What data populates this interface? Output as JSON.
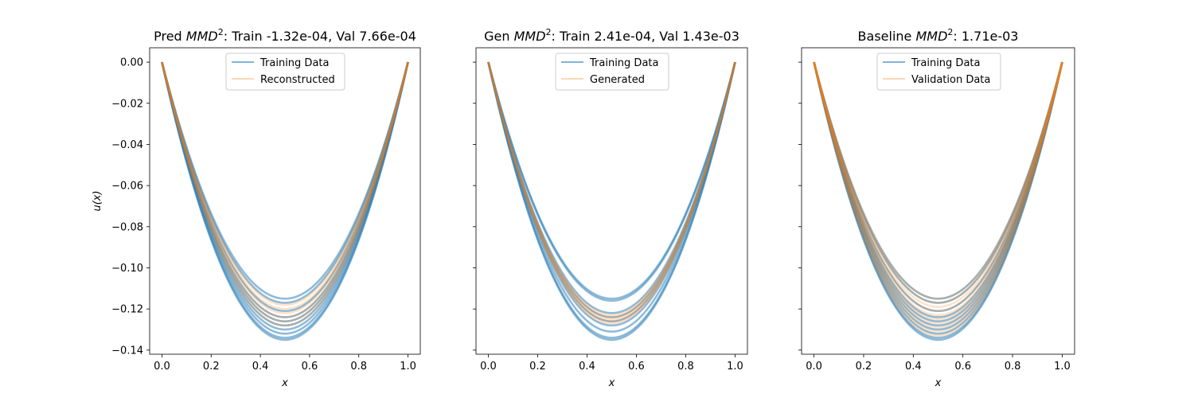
{
  "chart_data": [
    {
      "type": "line",
      "title_prefix": "Pred ",
      "title_italic": "MMD",
      "title_sup": "2",
      "title_suffix": ": Train -1.32e-04, Val 7.66e-04",
      "xlabel": "x",
      "ylabel": "u(x)",
      "xlim": [
        -0.05,
        1.05
      ],
      "ylim": [
        -0.142,
        0.007
      ],
      "xticks": [
        "0.0",
        "0.2",
        "0.4",
        "0.6",
        "0.8",
        "1.0"
      ],
      "yticks": [
        "0.00",
        "−0.02",
        "−0.04",
        "−0.06",
        "−0.08",
        "−0.10",
        "−0.12",
        "−0.14"
      ],
      "legend": {
        "position": "upper center",
        "entries": [
          "Training Data",
          "Reconstructed"
        ]
      },
      "series": [
        {
          "role": "training",
          "color": "#1f77b4",
          "minima": [
            -0.115,
            -0.117,
            -0.121,
            -0.124,
            -0.126,
            -0.128,
            -0.13,
            -0.132,
            -0.134,
            -0.135
          ]
        },
        {
          "role": "overlay",
          "color": "#ff7f0e",
          "minima": [
            -0.118,
            -0.12,
            -0.122,
            -0.124,
            -0.126,
            -0.128
          ]
        }
      ]
    },
    {
      "type": "line",
      "title_prefix": "Gen ",
      "title_italic": "MMD",
      "title_sup": "2",
      "title_suffix": ": Train 2.41e-04, Val 1.43e-03",
      "xlabel": "x",
      "ylabel": "",
      "xlim": [
        -0.05,
        1.05
      ],
      "ylim": [
        -0.142,
        0.007
      ],
      "xticks": [
        "0.0",
        "0.2",
        "0.4",
        "0.6",
        "0.8",
        "1.0"
      ],
      "yticks": [],
      "legend": {
        "position": "upper center",
        "entries": [
          "Training Data",
          "Generated"
        ]
      },
      "series": [
        {
          "role": "training",
          "color": "#1f77b4",
          "minima": [
            -0.115,
            -0.116,
            -0.122,
            -0.124,
            -0.126,
            -0.128,
            -0.131,
            -0.134,
            -0.135
          ]
        },
        {
          "role": "overlay",
          "color": "#ff7f0e",
          "minima": [
            -0.123,
            -0.124,
            -0.125,
            -0.126,
            -0.127
          ]
        }
      ]
    },
    {
      "type": "line",
      "title_prefix": "Baseline ",
      "title_italic": "MMD",
      "title_sup": "2",
      "title_suffix": ": 1.71e-03",
      "xlabel": "x",
      "ylabel": "",
      "xlim": [
        -0.05,
        1.05
      ],
      "ylim": [
        -0.142,
        0.007
      ],
      "xticks": [
        "0.0",
        "0.2",
        "0.4",
        "0.6",
        "0.8",
        "1.0"
      ],
      "yticks": [],
      "legend": {
        "position": "upper center",
        "entries": [
          "Training Data",
          "Validation Data"
        ]
      },
      "series": [
        {
          "role": "training",
          "color": "#1f77b4",
          "minima": [
            -0.115,
            -0.117,
            -0.121,
            -0.124,
            -0.126,
            -0.128,
            -0.13,
            -0.132,
            -0.134,
            -0.135
          ]
        },
        {
          "role": "overlay",
          "color": "#ff7f0e",
          "minima": [
            -0.115,
            -0.117,
            -0.119,
            -0.121,
            -0.123,
            -0.125,
            -0.127,
            -0.129,
            -0.131,
            -0.133
          ]
        }
      ]
    }
  ]
}
